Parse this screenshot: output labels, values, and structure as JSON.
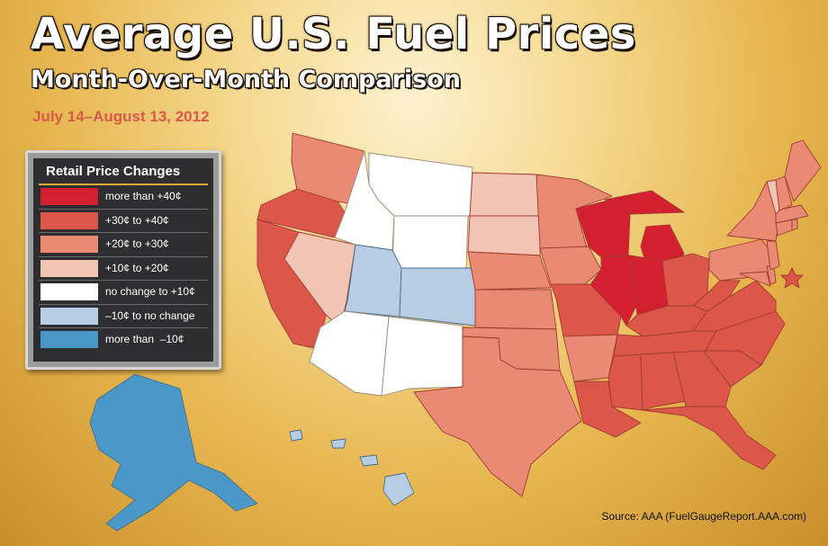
{
  "header": {
    "title": "Average U.S. Fuel Prices",
    "subtitle": "Month-Over-Month Comparison",
    "date_range": "July 14–August 13, 2012"
  },
  "legend": {
    "title": "Retail Price Changes",
    "items": [
      {
        "label": "more than +40¢",
        "color": "#d41f30"
      },
      {
        "label": "+30¢ to +40¢",
        "color": "#dc574a"
      },
      {
        "label": "+20¢ to +30¢",
        "color": "#e88a74"
      },
      {
        "label": "+10¢ to +20¢",
        "color": "#f2c4b4"
      },
      {
        "label": "no change to +10¢",
        "color": "#ffffff"
      },
      {
        "label": "–10¢ to no change",
        "color": "#b6cde4"
      },
      {
        "label": "more than  –10¢",
        "color": "#4a98c8"
      }
    ]
  },
  "source": "Source: AAA (FuelGaugeReport.AAA.com)",
  "map": {
    "category_by_state": {
      "WA": 2,
      "OR": 1,
      "CA": 1,
      "NV": 3,
      "ID": 4,
      "MT": 4,
      "WY": 4,
      "UT": 5,
      "CO": 5,
      "AZ": 4,
      "NM": 4,
      "ND": 3,
      "SD": 3,
      "NE": 2,
      "KS": 2,
      "OK": 2,
      "TX": 2,
      "MN": 2,
      "IA": 2,
      "MO": 1,
      "AR": 2,
      "LA": 1,
      "WI": 0,
      "MI": 0,
      "IL": 0,
      "IN": 0,
      "OH": 1,
      "KY": 1,
      "TN": 1,
      "MS": 1,
      "AL": 1,
      "GA": 1,
      "FL": 1,
      "SC": 1,
      "NC": 1,
      "VA": 1,
      "WV": 1,
      "PA": 2,
      "NY": 2,
      "VT": 3,
      "NH": 2,
      "ME": 2,
      "MA": 2,
      "RI": 2,
      "CT": 2,
      "NJ": 2,
      "DE": 2,
      "MD": 2,
      "DC": 1,
      "AK": 6,
      "HI": 5
    }
  }
}
